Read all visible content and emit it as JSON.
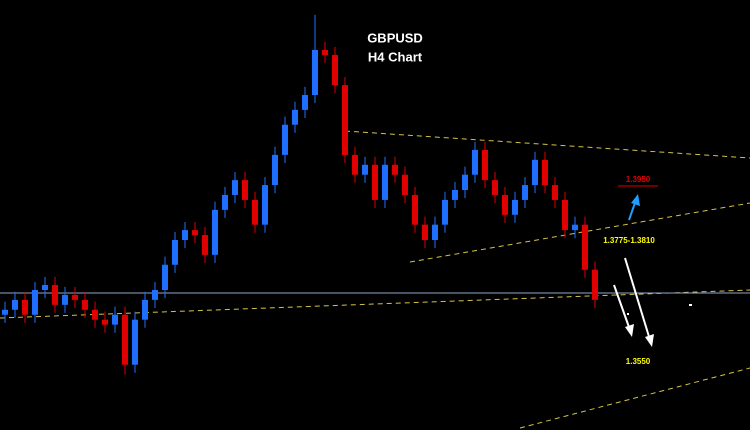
{
  "chart_data": {
    "type": "candlestick",
    "title": "GBPUSD",
    "subtitle": "H4 Chart",
    "up_color": "#1e6fff",
    "down_color": "#e00000",
    "ylim": [
      1.3395,
      1.435
    ],
    "open": [
      1.3651,
      1.3662,
      1.3684,
      1.3651,
      1.3706,
      1.3717,
      1.3673,
      1.3695,
      1.3684,
      1.3662,
      1.364,
      1.3629,
      1.3651,
      1.354,
      1.364,
      1.3684,
      1.3706,
      1.3762,
      1.3817,
      1.3839,
      1.3828,
      1.3784,
      1.3884,
      1.3917,
      1.395,
      1.3906,
      1.3851,
      1.3939,
      1.4006,
      1.4073,
      1.4106,
      1.4139,
      1.4239,
      1.4228,
      1.4161,
      1.4006,
      1.3962,
      1.3984,
      1.3906,
      1.3984,
      1.3962,
      1.3917,
      1.3851,
      1.3817,
      1.3851,
      1.3906,
      1.3928,
      1.3962,
      1.4017,
      1.395,
      1.3917,
      1.3873,
      1.3906,
      1.3939,
      1.3995,
      1.3939,
      1.3906,
      1.3839,
      1.3851,
      1.3751
    ],
    "high": [
      1.368,
      1.3702,
      1.3702,
      1.3724,
      1.3735,
      1.3735,
      1.3713,
      1.3713,
      1.3702,
      1.368,
      1.3658,
      1.3669,
      1.3669,
      1.3658,
      1.3702,
      1.3724,
      1.378,
      1.3835,
      1.3857,
      1.3857,
      1.3846,
      1.3902,
      1.3935,
      1.3968,
      1.3968,
      1.3924,
      1.3957,
      1.4024,
      1.4091,
      1.4124,
      1.4157,
      1.4317,
      1.4257,
      1.4246,
      1.4179,
      1.4024,
      1.4002,
      1.4002,
      1.4002,
      1.4002,
      1.398,
      1.3935,
      1.3869,
      1.3869,
      1.3924,
      1.3946,
      1.398,
      1.4035,
      1.4035,
      1.3968,
      1.3935,
      1.3924,
      1.3957,
      1.4013,
      1.4013,
      1.3957,
      1.3924,
      1.3869,
      1.3869,
      1.3769
    ],
    "low": [
      1.3633,
      1.3644,
      1.3633,
      1.3633,
      1.3688,
      1.3655,
      1.3655,
      1.3666,
      1.3644,
      1.3622,
      1.3611,
      1.3611,
      1.3518,
      1.3522,
      1.3622,
      1.3666,
      1.3688,
      1.3744,
      1.3799,
      1.381,
      1.3766,
      1.3766,
      1.3866,
      1.3899,
      1.3888,
      1.3833,
      1.3833,
      1.3921,
      1.3988,
      1.4055,
      1.4088,
      1.4121,
      1.421,
      1.4143,
      1.3988,
      1.3944,
      1.3944,
      1.3888,
      1.3888,
      1.3944,
      1.3899,
      1.3833,
      1.3799,
      1.3799,
      1.3833,
      1.3888,
      1.391,
      1.3944,
      1.3932,
      1.3899,
      1.3855,
      1.3855,
      1.3888,
      1.3921,
      1.3921,
      1.3888,
      1.3821,
      1.3821,
      1.3733,
      1.3666
    ],
    "close": [
      1.3662,
      1.3684,
      1.3651,
      1.3706,
      1.3717,
      1.3673,
      1.3695,
      1.3684,
      1.3662,
      1.364,
      1.3629,
      1.3651,
      1.354,
      1.364,
      1.3684,
      1.3706,
      1.3762,
      1.3817,
      1.3839,
      1.3828,
      1.3784,
      1.3884,
      1.3917,
      1.395,
      1.3906,
      1.3851,
      1.3939,
      1.4006,
      1.4073,
      1.4106,
      1.4139,
      1.4239,
      1.4228,
      1.4161,
      1.4006,
      1.3962,
      1.3984,
      1.3906,
      1.3984,
      1.3962,
      1.3917,
      1.3851,
      1.3817,
      1.3851,
      1.3906,
      1.3928,
      1.3962,
      1.4017,
      1.395,
      1.3917,
      1.3873,
      1.3906,
      1.3939,
      1.3995,
      1.3939,
      1.3906,
      1.3839,
      1.3851,
      1.3751,
      1.3684
    ],
    "annotations": [
      "1.3950",
      "1.3775-1.3810",
      "1.3550"
    ]
  }
}
